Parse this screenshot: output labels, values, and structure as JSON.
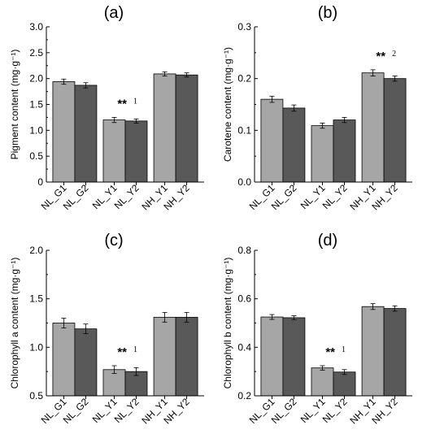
{
  "chart_data": [
    {
      "type": "bar",
      "panel_label": "(a)",
      "ylabel": "Pigment content (mg·g⁻¹)",
      "ylim": [
        0,
        3.0
      ],
      "yticks": [
        "0",
        "0.5",
        "1.0",
        "1.5",
        "2.0",
        "2.5",
        "3.0"
      ],
      "categories": [
        "NL_G1",
        "NL_G2",
        "NL_Y1",
        "NL_Y2",
        "NH_Y1",
        "NH_Y2"
      ],
      "values": [
        1.94,
        1.87,
        1.2,
        1.18,
        2.09,
        2.07
      ],
      "errors": [
        0.05,
        0.05,
        0.05,
        0.04,
        0.04,
        0.04
      ],
      "annotation": {
        "text": "**",
        "superscript": "1",
        "group": 1
      },
      "colors": [
        "#a6a6a6",
        "#595959"
      ]
    },
    {
      "type": "bar",
      "panel_label": "(b)",
      "ylabel": "Carotene content (mg·g⁻¹)",
      "ylim": [
        0,
        0.3
      ],
      "yticks": [
        "0.0",
        "0.1",
        "0.2",
        "0.3"
      ],
      "categories": [
        "NL_G1",
        "NL_G2",
        "NL_Y1",
        "NL_Y2",
        "NH_Y1",
        "NH_Y2"
      ],
      "values": [
        0.16,
        0.143,
        0.109,
        0.12,
        0.211,
        0.2
      ],
      "errors": [
        0.006,
        0.006,
        0.005,
        0.005,
        0.006,
        0.005
      ],
      "annotation": {
        "text": "**",
        "superscript": "2",
        "group": 2
      },
      "colors": [
        "#a6a6a6",
        "#595959"
      ]
    },
    {
      "type": "bar",
      "panel_label": "(c)",
      "ylabel": "Chlorophyll a content (mg·g⁻¹)",
      "ylim": [
        0.5,
        2.0
      ],
      "yticks": [
        "0.5",
        "1.0",
        "1.5",
        "2.0"
      ],
      "categories": [
        "NL_G1",
        "NL_G2",
        "NL_Y1",
        "NL_Y2",
        "NH_Y1",
        "NH_Y2"
      ],
      "values": [
        1.25,
        1.19,
        0.77,
        0.75,
        1.31,
        1.31
      ],
      "errors": [
        0.05,
        0.05,
        0.04,
        0.04,
        0.05,
        0.05
      ],
      "annotation": {
        "text": "**",
        "superscript": "1",
        "group": 1
      },
      "colors": [
        "#a6a6a6",
        "#595959"
      ]
    },
    {
      "type": "bar",
      "panel_label": "(d)",
      "ylabel": "Chlorophyll b content (mg·g⁻¹)",
      "ylim": [
        0.2,
        0.8
      ],
      "yticks": [
        "0.2",
        "0.4",
        "0.6",
        "0.8"
      ],
      "categories": [
        "NL_G1",
        "NL_G2",
        "NL_Y1",
        "NL_Y2",
        "NH_Y1",
        "NH_Y2"
      ],
      "values": [
        0.525,
        0.522,
        0.315,
        0.298,
        0.568,
        0.56
      ],
      "errors": [
        0.01,
        0.008,
        0.009,
        0.01,
        0.012,
        0.011
      ],
      "annotation": {
        "text": "**",
        "superscript": "1",
        "group": 1
      },
      "colors": [
        "#a6a6a6",
        "#595959"
      ]
    }
  ]
}
